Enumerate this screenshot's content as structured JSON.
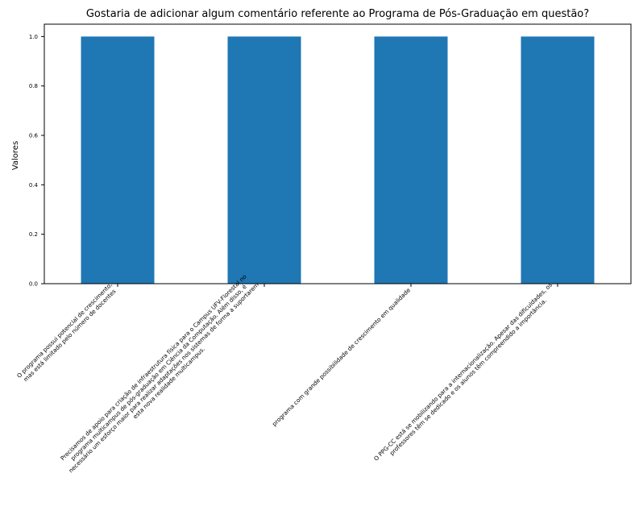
{
  "chart_data": {
    "type": "bar",
    "title": "Gostaria de adicionar algum comentário referente ao Programa de Pós-Graduação em questão?",
    "xlabel": "",
    "ylabel": "Valores",
    "ylim": [
      0,
      1.05
    ],
    "yticks": [
      "0.0",
      "0.2",
      "0.4",
      "0.6",
      "0.8",
      "1.0"
    ],
    "grid": false,
    "bar_color": "#1f77b4",
    "categories": [
      [
        "O programa possui potencial de crescimento,",
        "mas está limitado pelo número de docentes"
      ],
      [
        "Precisamos de apoio para criação de infraestrutura física para o Campus UFV-Florestal no",
        "programa multicampus de pós-graduação em Ciência da Computação. Além disso, é",
        "necessário um esforço maior para realizar adaptações nos sistemas de forma a suportarem",
        "esta nova realidade multicampus."
      ],
      [
        "programa com grande possibilidade de crescimento em qualidade"
      ],
      [
        "O PPG-CC está se mobilizando para a internacionalização. Apesar das dificuldades, os",
        "professores têm se dedicado e os alunos têm compreendido a importância."
      ]
    ],
    "values": [
      1.0,
      1.0,
      1.0,
      1.0
    ]
  }
}
